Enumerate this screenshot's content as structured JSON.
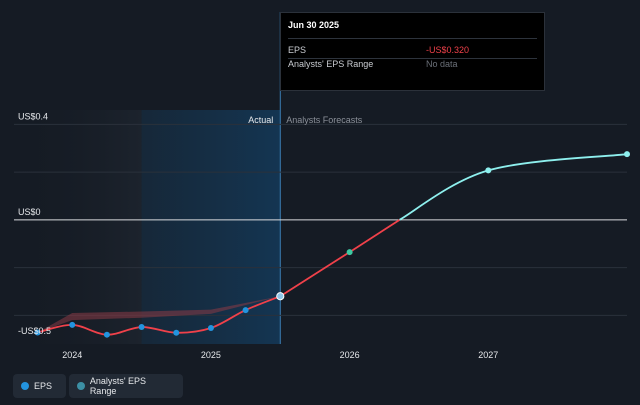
{
  "tooltip": {
    "date": "Jun 30 2025",
    "rows": [
      {
        "label": "EPS",
        "value": "-US$0.320",
        "color": "#f0414a"
      },
      {
        "label": "Analysts' EPS Range",
        "value": "No data",
        "color": "#6b7079"
      }
    ]
  },
  "legend": [
    {
      "label": "EPS",
      "color": "#2394df"
    },
    {
      "label": "Analysts' EPS Range",
      "color": "#3c8fa4"
    }
  ],
  "colors": {
    "background": "#151b24",
    "actual_line": "#f0414a",
    "forecast_line": "#8ef0ee",
    "marker": "#2394df",
    "range_band": "#8b3a46"
  },
  "chart_data": {
    "type": "line",
    "region_labels": {
      "actual": "Actual",
      "forecast": "Analysts Forecasts"
    },
    "y_tick_labels": [
      {
        "value": 0.4,
        "label": "US$0.4"
      },
      {
        "value": 0,
        "label": "US$0"
      },
      {
        "value": -0.5,
        "label": "-US$0.5"
      }
    ],
    "x_tick_labels": [
      {
        "value": 2024.0,
        "label": "2024"
      },
      {
        "value": 2025.0,
        "label": "2025"
      },
      {
        "value": 2026.0,
        "label": "2026"
      },
      {
        "value": 2027.0,
        "label": "2027"
      }
    ],
    "xlim": [
      2023.58,
      2028.0
    ],
    "ylim": [
      -0.52,
      0.46
    ],
    "gridlines": [
      0.4,
      0.2,
      0,
      -0.2,
      -0.4
    ],
    "actual_start": 2024.5,
    "actual_end": 2025.5,
    "series": [
      {
        "name": "EPS",
        "kind": "actual",
        "points": [
          {
            "x": 2023.75,
            "y": -0.472
          },
          {
            "x": 2024.0,
            "y": -0.44
          },
          {
            "x": 2024.25,
            "y": -0.481
          },
          {
            "x": 2024.5,
            "y": -0.449
          },
          {
            "x": 2024.75,
            "y": -0.473
          },
          {
            "x": 2025.0,
            "y": -0.453
          },
          {
            "x": 2025.25,
            "y": -0.378
          },
          {
            "x": 2025.5,
            "y": -0.32
          }
        ]
      },
      {
        "name": "EPS",
        "kind": "forecast",
        "points": [
          {
            "x": 2025.5,
            "y": -0.32
          },
          {
            "x": 2026.0,
            "y": -0.135
          },
          {
            "x": 2026.36,
            "y": 0.0
          },
          {
            "x": 2027.0,
            "y": 0.207
          },
          {
            "x": 2028.0,
            "y": 0.275
          }
        ]
      }
    ],
    "range_band": {
      "upper": [
        {
          "x": 2023.75,
          "y": -0.472
        },
        {
          "x": 2024.0,
          "y": -0.39
        },
        {
          "x": 2024.5,
          "y": -0.384
        },
        {
          "x": 2025.0,
          "y": -0.376
        },
        {
          "x": 2025.5,
          "y": -0.32
        }
      ],
      "lower": [
        {
          "x": 2025.5,
          "y": -0.32
        },
        {
          "x": 2025.0,
          "y": -0.394
        },
        {
          "x": 2024.5,
          "y": -0.41
        },
        {
          "x": 2024.0,
          "y": -0.42
        },
        {
          "x": 2023.75,
          "y": -0.472
        }
      ]
    }
  }
}
